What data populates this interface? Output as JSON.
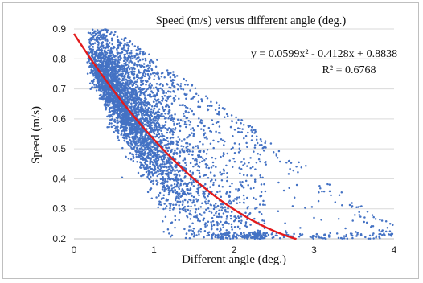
{
  "chart_data": {
    "type": "scatter",
    "title": "Speed (m/s) versus different  angle (deg.)",
    "xlabel": "Different  angle (deg.)",
    "ylabel": "Speed (m/s)",
    "xlim": [
      0,
      4
    ],
    "ylim": [
      0.2,
      0.9
    ],
    "xticks": [
      "0",
      "1",
      "2",
      "3",
      "4"
    ],
    "yticks": [
      "0.2",
      "0.3",
      "0.4",
      "0.5",
      "0.6",
      "0.7",
      "0.8",
      "0.9"
    ],
    "grid": "horizontal",
    "colors": {
      "points": "#4472c4",
      "trendline": "#e31a1c",
      "grid": "#d9d9d9"
    },
    "annotations": {
      "equation": "y = 0.0599x² - 0.4128x + 0.8838",
      "r_squared": "R² = 0.6768"
    },
    "trendline": {
      "type": "polynomial",
      "coefficients": [
        0.0599,
        -0.4128,
        0.8838
      ],
      "x_range": [
        0,
        2.78
      ]
    },
    "point_cloud": {
      "description_count": 4500,
      "x_range": [
        0.1,
        4.0
      ],
      "y_range": [
        0.2,
        0.9
      ]
    }
  }
}
